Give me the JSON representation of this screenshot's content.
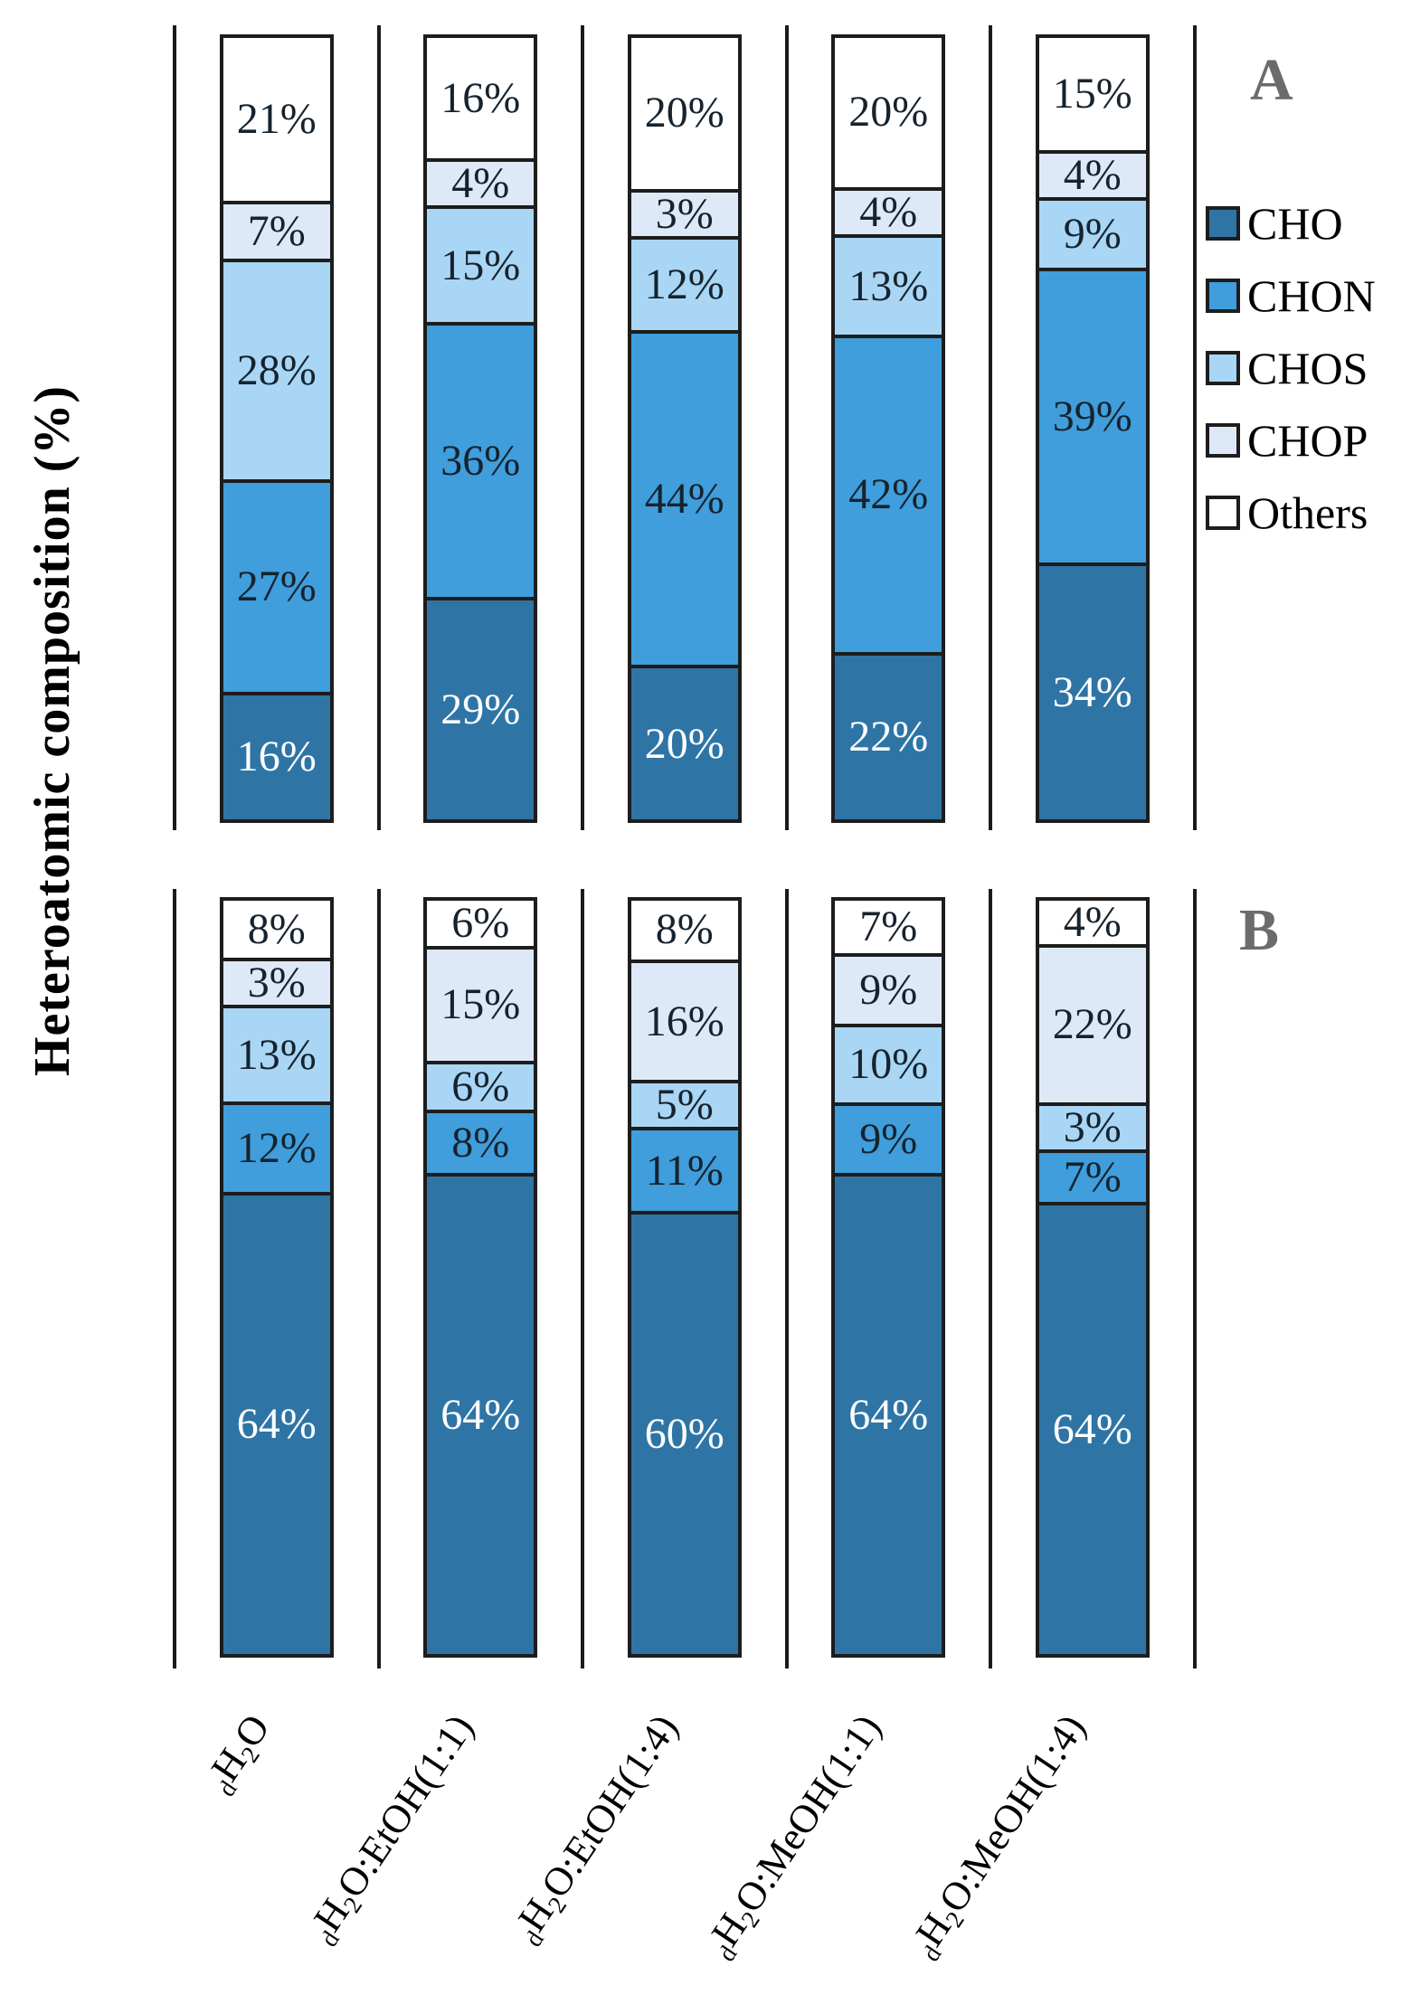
{
  "y_axis_title": "Heteroatomic composition (%)",
  "panel_a_label": "A",
  "panel_b_label": "B",
  "legend": [
    {
      "name": "CHO",
      "color": "#2e75a6"
    },
    {
      "name": "CHON",
      "color": "#3f9edb"
    },
    {
      "name": "CHOS",
      "color": "#a9d6f4"
    },
    {
      "name": "CHOP",
      "color": "#dde9f7"
    },
    {
      "name": "Others",
      "color": "#ffffff"
    }
  ],
  "x_tick_parts": [
    [
      [
        "d",
        true
      ],
      [
        "H",
        false
      ],
      [
        "2",
        true
      ],
      [
        "O",
        false
      ]
    ],
    [
      [
        "d",
        true
      ],
      [
        "H",
        false
      ],
      [
        "2",
        true
      ],
      [
        "O:EtOH(1:1)",
        false
      ]
    ],
    [
      [
        "d",
        true
      ],
      [
        "H",
        false
      ],
      [
        "2",
        true
      ],
      [
        "O:EtOH(1:4)",
        false
      ]
    ],
    [
      [
        "d",
        true
      ],
      [
        "H",
        false
      ],
      [
        "2",
        true
      ],
      [
        "O:MeOH(1:1)",
        false
      ]
    ],
    [
      [
        "d",
        true
      ],
      [
        "H",
        false
      ],
      [
        "2",
        true
      ],
      [
        "O:MeOH(1:4)",
        false
      ]
    ]
  ],
  "chart_data": [
    {
      "type": "bar",
      "stacked": true,
      "panel": "A",
      "title": "",
      "xlabel": "",
      "ylabel": "Heteroatomic composition (%)",
      "ylim": [
        0,
        100
      ],
      "grid": false,
      "legend_position": "right",
      "categories": [
        "dH2O",
        "dH2O:EtOH(1:1)",
        "dH2O:EtOH(1:4)",
        "dH2O:MeOH(1:1)",
        "dH2O:MeOH(1:4)"
      ],
      "series": [
        {
          "name": "CHO",
          "values": [
            16,
            29,
            20,
            22,
            34
          ]
        },
        {
          "name": "CHON",
          "values": [
            27,
            36,
            44,
            42,
            39
          ]
        },
        {
          "name": "CHOS",
          "values": [
            28,
            15,
            12,
            13,
            9
          ]
        },
        {
          "name": "CHOP",
          "values": [
            7,
            4,
            3,
            4,
            4
          ]
        },
        {
          "name": "Others",
          "values": [
            21,
            16,
            20,
            20,
            15
          ]
        }
      ]
    },
    {
      "type": "bar",
      "stacked": true,
      "panel": "B",
      "title": "",
      "xlabel": "",
      "ylabel": "Heteroatomic composition (%)",
      "ylim": [
        0,
        100
      ],
      "grid": false,
      "legend_position": "right",
      "categories": [
        "dH2O",
        "dH2O:EtOH(1:1)",
        "dH2O:EtOH(1:4)",
        "dH2O:MeOH(1:1)",
        "dH2O:MeOH(1:4)"
      ],
      "series": [
        {
          "name": "CHO",
          "values": [
            64,
            64,
            60,
            64,
            64
          ]
        },
        {
          "name": "CHON",
          "values": [
            12,
            8,
            11,
            9,
            7
          ]
        },
        {
          "name": "CHOS",
          "values": [
            13,
            6,
            5,
            10,
            3
          ]
        },
        {
          "name": "CHOP",
          "values": [
            3,
            15,
            16,
            9,
            22
          ]
        },
        {
          "name": "Others",
          "values": [
            8,
            6,
            8,
            7,
            4
          ]
        }
      ]
    }
  ]
}
